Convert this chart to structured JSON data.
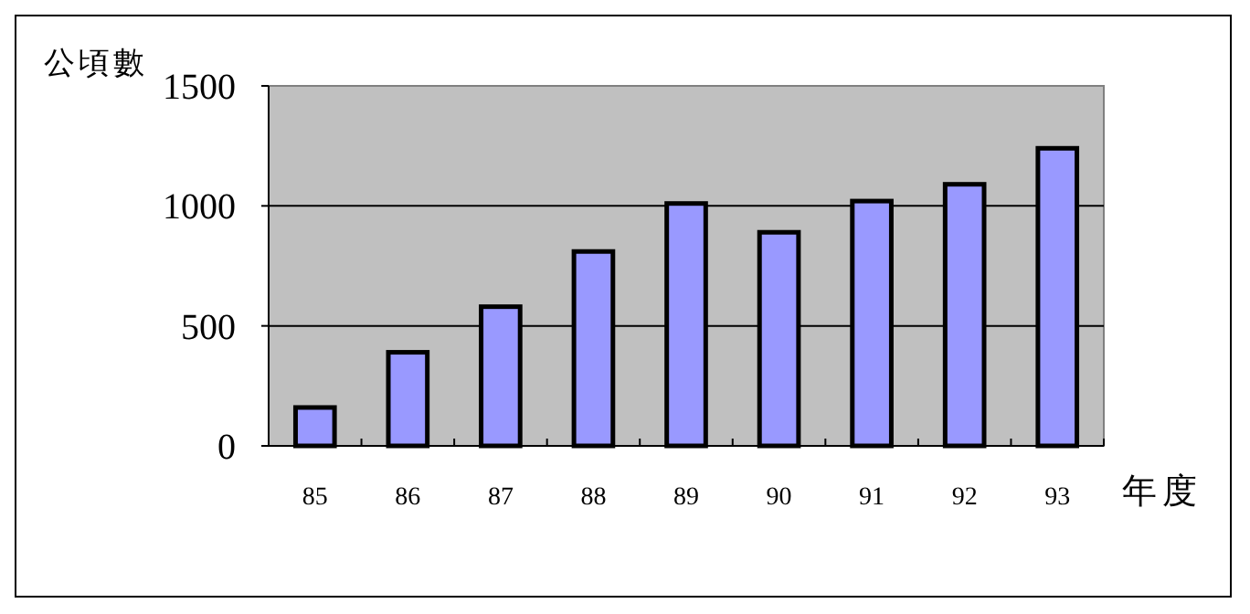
{
  "chart_data": {
    "type": "bar",
    "xlabel": "年度",
    "ylabel": "公頃數",
    "categories": [
      "85",
      "86",
      "87",
      "88",
      "89",
      "90",
      "91",
      "92",
      "93"
    ],
    "values": [
      160,
      390,
      580,
      810,
      1010,
      890,
      1020,
      1090,
      1240
    ],
    "color": "#9999ff",
    "ylim": [
      0,
      1500
    ],
    "yticks": [
      0,
      500,
      1000,
      1500
    ],
    "grid": "y"
  }
}
